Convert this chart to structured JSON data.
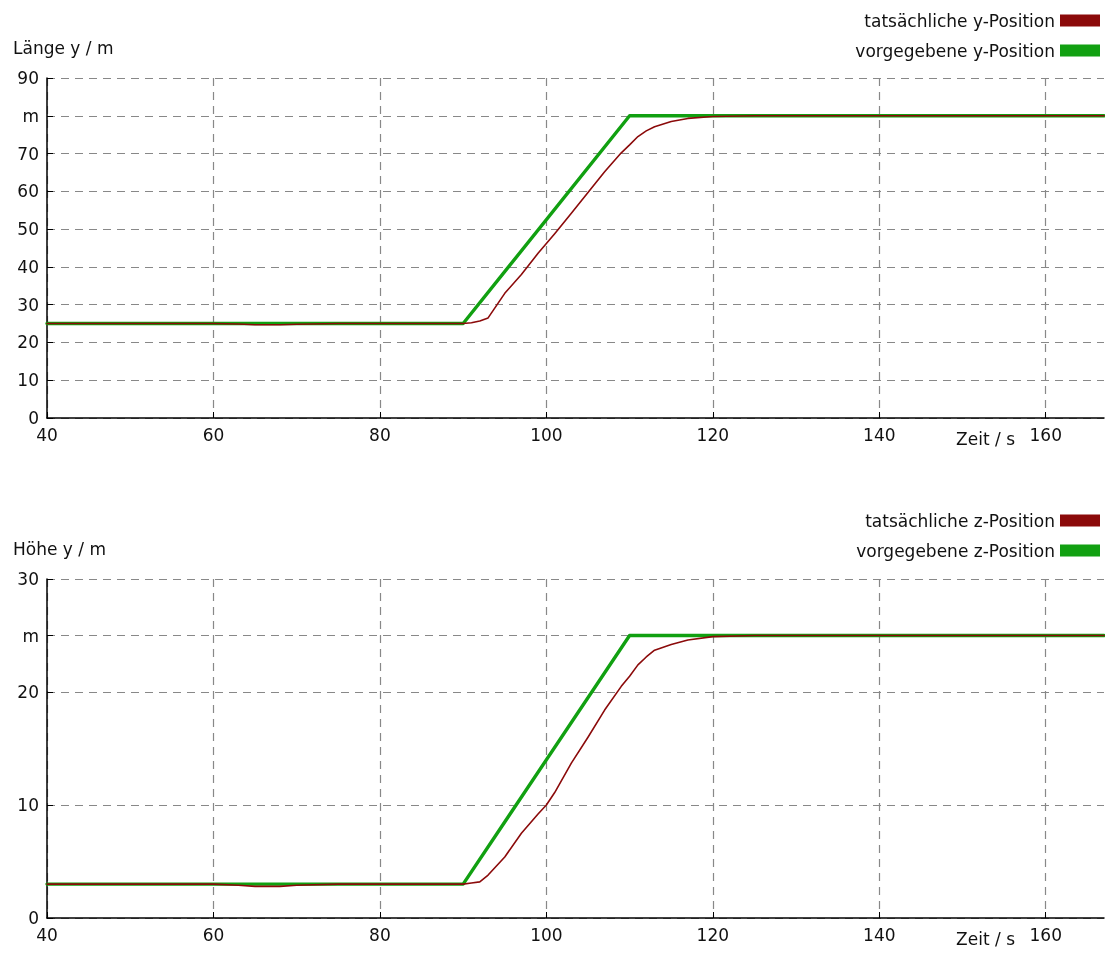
{
  "chart_data": [
    {
      "type": "line",
      "ylabel": "Länge y / m",
      "xlabel": "Zeit / s",
      "xlim": [
        40,
        167
      ],
      "xticks": [
        40,
        60,
        80,
        100,
        120,
        140,
        160
      ],
      "ylim": [
        0,
        90
      ],
      "yticks": [
        0,
        10,
        20,
        30,
        40,
        50,
        60,
        70,
        {
          "value": 80,
          "label": "m"
        },
        90
      ],
      "grid": true,
      "legend": "top right",
      "marker": "none",
      "line_style": "solid",
      "series": [
        {
          "name": "tatsächliche y-Position",
          "color": "#8b0a0a",
          "x": [
            40,
            45,
            50,
            55,
            60,
            63,
            65,
            68,
            70,
            75,
            80,
            85,
            88,
            90,
            91,
            92,
            93,
            95,
            97,
            99,
            101,
            103,
            105,
            107,
            109,
            110,
            111,
            112,
            113,
            115,
            117,
            120,
            125,
            130,
            140,
            150,
            160,
            167
          ],
          "values": [
            25,
            25,
            25,
            25,
            25,
            24.9,
            24.7,
            24.7,
            24.8,
            25,
            25,
            25,
            25,
            25,
            25.2,
            25.7,
            26.5,
            33,
            38,
            43.6,
            48.8,
            54.2,
            59.7,
            65.2,
            70.2,
            72.3,
            74.5,
            76,
            77.1,
            78.5,
            79.3,
            79.8,
            80,
            80,
            80,
            80,
            80,
            80
          ]
        },
        {
          "name": "vorgegebene y-Position",
          "color": "#11a011",
          "x": [
            40,
            90,
            110,
            167
          ],
          "values": [
            25,
            25,
            80,
            80
          ]
        }
      ]
    },
    {
      "type": "line",
      "ylabel": "Höhe y / m",
      "xlabel": "Zeit / s",
      "xlim": [
        40,
        167
      ],
      "xticks": [
        40,
        60,
        80,
        100,
        120,
        140,
        160
      ],
      "ylim": [
        0,
        30
      ],
      "yticks": [
        0,
        10,
        20,
        {
          "value": 25,
          "label": "m"
        },
        30
      ],
      "grid": true,
      "legend": "top right",
      "marker": "none",
      "line_style": "solid",
      "series": [
        {
          "name": "tatsächliche z-Position",
          "color": "#8b0a0a",
          "x": [
            40,
            45,
            50,
            55,
            60,
            63,
            65,
            68,
            70,
            75,
            80,
            85,
            88,
            90,
            91,
            92,
            93,
            95,
            97,
            99,
            100,
            101,
            103,
            105,
            107,
            109,
            110,
            111,
            112,
            113,
            115,
            117,
            120,
            125,
            130,
            140,
            150,
            160,
            167
          ],
          "values": [
            3,
            3,
            3,
            3,
            3,
            2.9,
            2.8,
            2.8,
            2.9,
            3,
            3,
            3,
            3,
            3,
            3.1,
            3.2,
            3.8,
            5.4,
            7.5,
            9.2,
            10,
            11.1,
            13.7,
            16,
            18.4,
            20.5,
            21.4,
            22.4,
            23.1,
            23.7,
            24.2,
            24.6,
            24.9,
            25,
            25,
            25,
            25,
            25,
            25
          ]
        },
        {
          "name": "vorgegebene z-Position",
          "color": "#11a011",
          "x": [
            40,
            90,
            110,
            167
          ],
          "values": [
            3,
            3,
            25,
            25
          ]
        }
      ]
    }
  ]
}
